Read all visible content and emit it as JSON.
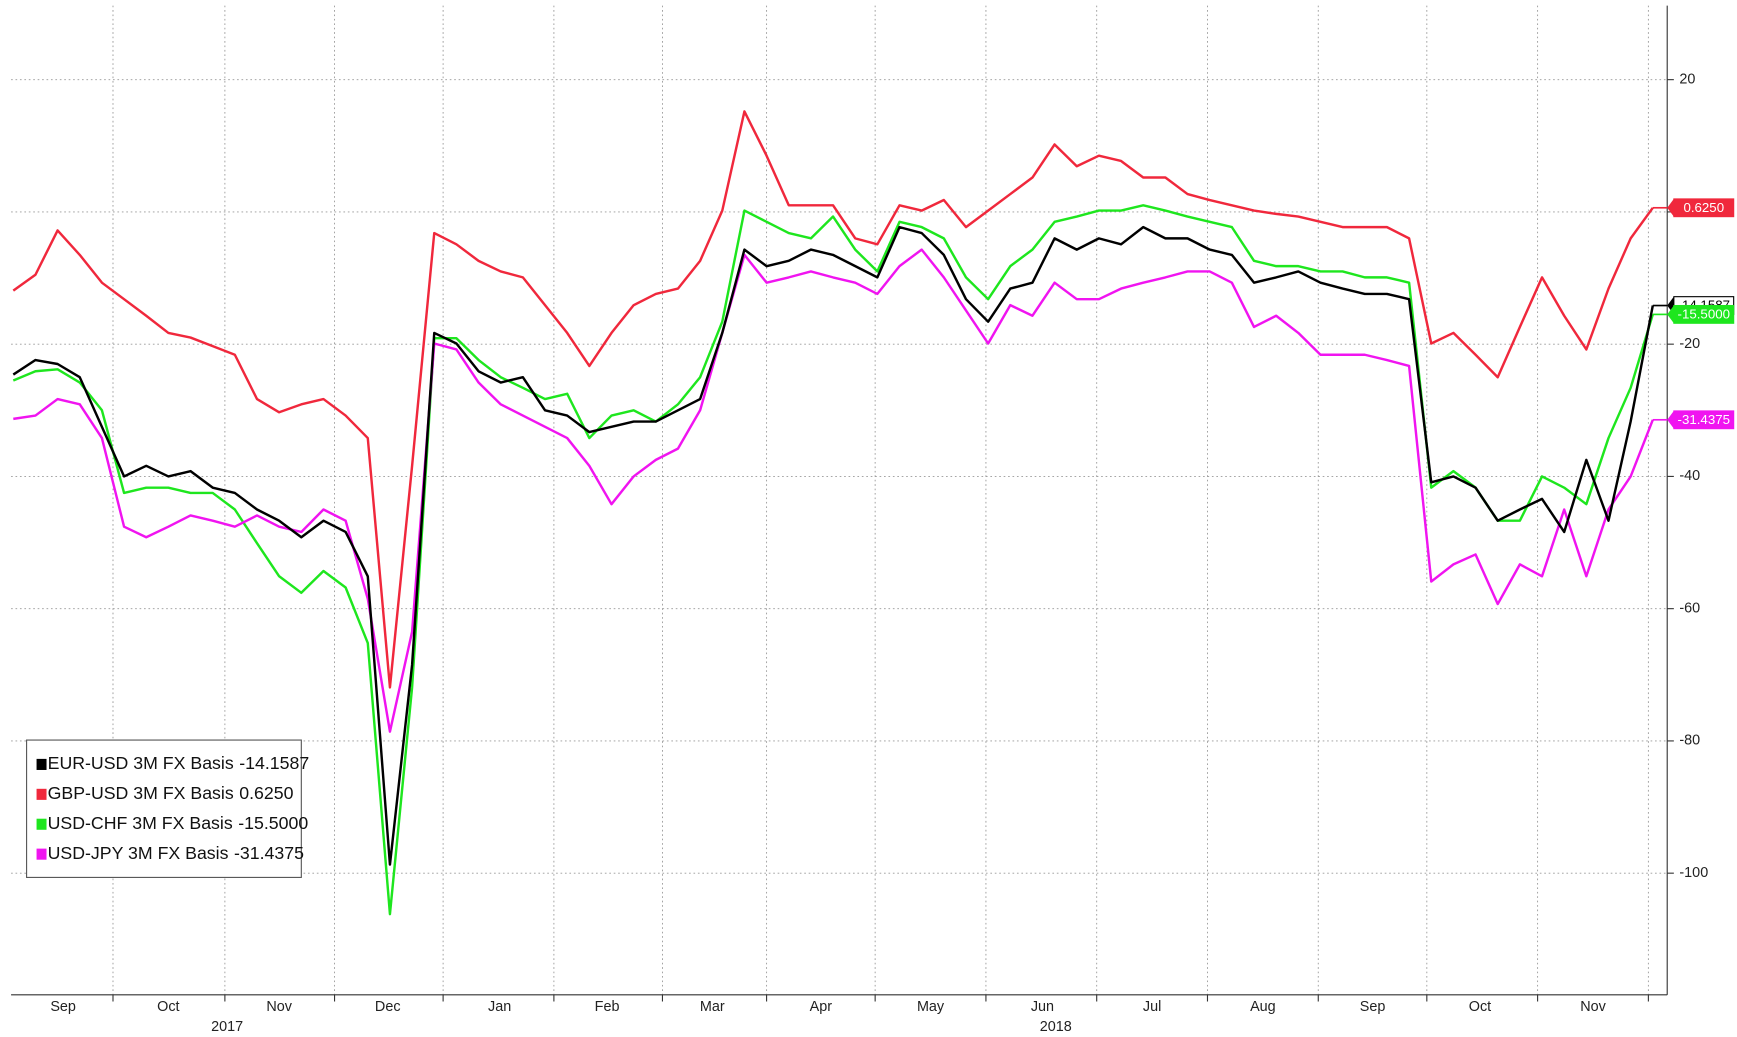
{
  "chart_data": {
    "type": "line",
    "ylim": [
      -118.4,
      31.2
    ],
    "yticks": [
      20,
      0,
      -20,
      -40,
      -60,
      -80,
      -100
    ],
    "xlim": [
      -0.1,
      74.65
    ],
    "xticks": [
      4.5,
      9.55,
      14.5,
      19.4,
      24.4,
      29.3,
      34,
      38.9,
      43.9,
      48.9,
      53.9,
      58.9,
      63.8,
      68.8,
      73.8
    ],
    "month_labels": [
      {
        "value": 2.25,
        "label": "Sep"
      },
      {
        "value": 7,
        "label": "Oct"
      },
      {
        "value": 12,
        "label": "Nov"
      },
      {
        "value": 16.9,
        "label": "Dec"
      },
      {
        "value": 21.95,
        "label": "Jan"
      },
      {
        "value": 26.8,
        "label": "Feb"
      },
      {
        "value": 31.55,
        "label": "Mar"
      },
      {
        "value": 36.45,
        "label": "Apr"
      },
      {
        "value": 41.4,
        "label": "May"
      },
      {
        "value": 46.45,
        "label": "Jun"
      },
      {
        "value": 51.4,
        "label": "Jul"
      },
      {
        "value": 56.4,
        "label": "Aug"
      },
      {
        "value": 61.35,
        "label": "Sep"
      },
      {
        "value": 66.2,
        "label": "Oct"
      },
      {
        "value": 71.3,
        "label": "Nov"
      }
    ],
    "year_labels": [
      {
        "value": 9.65,
        "label": "2017"
      },
      {
        "value": 47.05,
        "label": "2018"
      }
    ],
    "grid": true,
    "legend": "lower left",
    "series": [
      {
        "name": "EUR-USD 3M FX Basis",
        "color": "#000000",
        "last_label": "-14.1587",
        "values": [
          -24.6,
          -22.4,
          -23,
          -25,
          -32.5,
          -40,
          -38.4,
          -40,
          -39.2,
          -41.7,
          -42.5,
          -45,
          -46.7,
          -49.2,
          -46.7,
          -48.4,
          -55.1,
          -98.7,
          -68.5,
          -18.3,
          -19.9,
          -24.1,
          -25.8,
          -25,
          -30,
          -30.8,
          -33.3,
          -32.5,
          -31.7,
          -31.7,
          -30,
          -28.3,
          -18.3,
          -5.7,
          -8.2,
          -7.4,
          -5.7,
          -6.5,
          -8.2,
          -9.9,
          -2.3,
          -3.2,
          -6.5,
          -13.2,
          -16.6,
          -11.6,
          -10.7,
          -4,
          -5.7,
          -4,
          -4.9,
          -2.3,
          -4,
          -4,
          -5.7,
          -6.5,
          -10.7,
          -9.9,
          -9,
          -10.7,
          -11.6,
          -12.4,
          -12.4,
          -13.2,
          -40.9,
          -40,
          -41.7,
          -46.7,
          -45,
          -43.4,
          -48.4,
          -37.5,
          -46.7,
          -31.7,
          -14.1587
        ]
      },
      {
        "name": "GBP-USD 3M FX Basis",
        "color": "#f0283c",
        "last_label": "0.6250",
        "values": [
          -11.9,
          -9.5,
          -2.8,
          -6.5,
          -10.7,
          -13.2,
          -15.7,
          -18.3,
          -19,
          -20.3,
          -21.6,
          -28.3,
          -30.3,
          -29.1,
          -28.3,
          -30.8,
          -34.2,
          -71.9,
          -38.4,
          -3.2,
          -4.9,
          -7.4,
          -9,
          -9.9,
          -14.1,
          -18.3,
          -23.3,
          -18.3,
          -14.1,
          -12.4,
          -11.6,
          -7.4,
          0.2,
          15.2,
          8.5,
          1,
          1,
          1,
          -4,
          -4.9,
          1,
          0.2,
          1.8,
          -2.3,
          0.2,
          2.7,
          5.2,
          10.2,
          6.9,
          8.5,
          7.7,
          5.2,
          5.2,
          2.7,
          1.8,
          1,
          0.2,
          -0.3,
          -0.7,
          -1.5,
          -2.3,
          -2.3,
          -2.3,
          -4,
          -19.9,
          -18.3,
          -21.6,
          -25,
          -17.4,
          -9.9,
          -15.7,
          -20.8,
          -11.6,
          -4,
          0.625
        ]
      },
      {
        "name": "USD-CHF 3M FX Basis",
        "color": "#1ee61e",
        "last_label": "-15.5000",
        "values": [
          -25.5,
          -24.1,
          -23.8,
          -25.8,
          -30,
          -42.5,
          -41.7,
          -41.7,
          -42.5,
          -42.5,
          -45,
          -50.1,
          -55.1,
          -57.6,
          -54.3,
          -56.8,
          -65.2,
          -106.2,
          -71.9,
          -19.1,
          -19.1,
          -22.4,
          -25,
          -26.6,
          -28.3,
          -27.5,
          -34.2,
          -30.8,
          -30,
          -31.7,
          -29.1,
          -25,
          -16.6,
          0.2,
          -1.5,
          -3.2,
          -4,
          -0.7,
          -5.7,
          -9,
          -1.5,
          -2.3,
          -4,
          -9.9,
          -13.2,
          -8.2,
          -5.7,
          -1.5,
          -0.7,
          0.2,
          0.2,
          1,
          0.2,
          -0.7,
          -1.5,
          -2.3,
          -7.4,
          -8.2,
          -8.2,
          -9,
          -9,
          -9.9,
          -9.9,
          -10.7,
          -41.7,
          -39.2,
          -41.7,
          -46.7,
          -46.7,
          -40,
          -41.7,
          -44.2,
          -34.2,
          -26.6,
          -15.5
        ]
      },
      {
        "name": "USD-JPY 3M FX Basis",
        "color": "#f014f0",
        "last_label": "-31.4375",
        "values": [
          -31.3,
          -30.8,
          -28.3,
          -29.1,
          -34.2,
          -47.6,
          -49.2,
          -47.6,
          -45.9,
          -46.7,
          -47.6,
          -45.9,
          -47.6,
          -48.4,
          -45,
          -46.7,
          -58.5,
          -78.6,
          -63.5,
          -19.9,
          -20.8,
          -25.8,
          -29.1,
          -30.8,
          -32.5,
          -34.2,
          -38.4,
          -44.2,
          -40,
          -37.5,
          -35.8,
          -30,
          -18.3,
          -6.5,
          -10.7,
          -9.9,
          -9,
          -9.9,
          -10.7,
          -12.4,
          -8.2,
          -5.7,
          -9.9,
          -14.9,
          -19.9,
          -14.1,
          -15.7,
          -10.7,
          -13.2,
          -13.2,
          -11.6,
          -10.7,
          -9.9,
          -9,
          -9,
          -10.7,
          -17.4,
          -15.7,
          -18.3,
          -21.6,
          -21.6,
          -21.6,
          -22.4,
          -23.3,
          -55.9,
          -53.3,
          -51.8,
          -59.3,
          -53.3,
          -55.1,
          -45,
          -55.1,
          -45,
          -40,
          -31.4375
        ]
      }
    ]
  }
}
